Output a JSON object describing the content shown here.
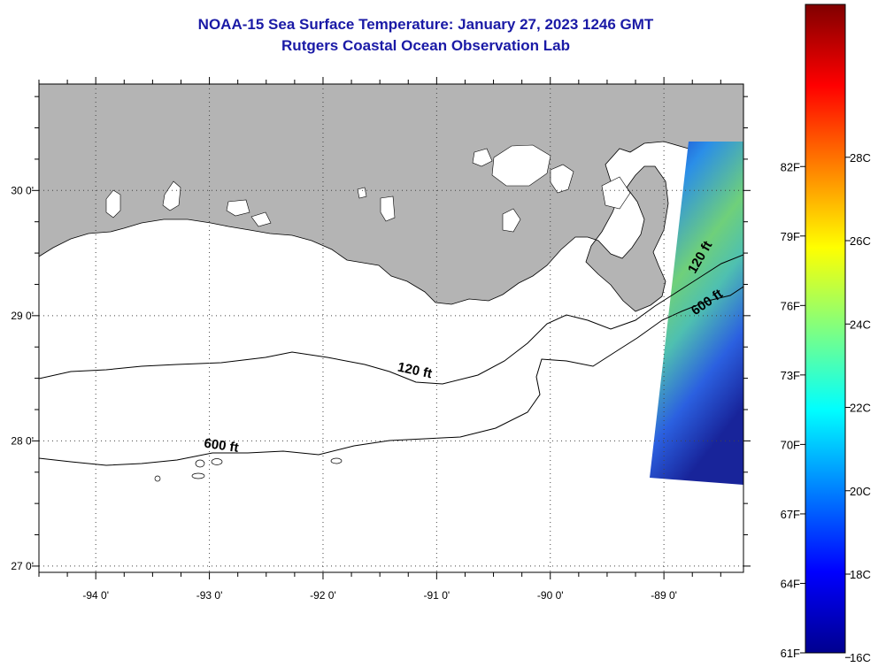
{
  "header": {
    "title": "NOAA-15 Sea Surface Temperature:  January 27, 2023 1246 GMT",
    "subtitle": "Rutgers Coastal Ocean Observation Lab"
  },
  "map": {
    "lon_range": [
      -94.5,
      -88.3
    ],
    "lat_range": [
      26.95,
      30.85
    ],
    "lon_ticks": [
      {
        "value": -94,
        "label": "-94 0'"
      },
      {
        "value": -93,
        "label": "-93 0'"
      },
      {
        "value": -92,
        "label": "-92 0'"
      },
      {
        "value": -91,
        "label": "-91 0'"
      },
      {
        "value": -90,
        "label": "-90 0'"
      },
      {
        "value": -89,
        "label": "-89 0'"
      }
    ],
    "lat_ticks": [
      {
        "value": 30,
        "label": "30 0'"
      },
      {
        "value": 29,
        "label": "29 0'"
      },
      {
        "value": 28,
        "label": "28 0'"
      },
      {
        "value": 27,
        "label": "27 0'"
      }
    ],
    "contour_labels": [
      {
        "text": "120 ft",
        "lon": -91.2,
        "lat": 28.53
      },
      {
        "text": "600 ft",
        "lon": -92.9,
        "lat": 27.93
      },
      {
        "text": "120 ft",
        "lon": -88.65,
        "lat": 29.45
      },
      {
        "text": "600 ft",
        "lon": -88.6,
        "lat": 29.08
      }
    ],
    "colors": {
      "land": "#b4b4b4",
      "water": "#ffffff",
      "grid": "#444444"
    }
  },
  "colorbar": {
    "fahrenheit": [
      {
        "value": 82,
        "label": "82F"
      },
      {
        "value": 79,
        "label": "79F"
      },
      {
        "value": 76,
        "label": "76F"
      },
      {
        "value": 73,
        "label": "73F"
      },
      {
        "value": 70,
        "label": "70F"
      },
      {
        "value": 67,
        "label": "67F"
      },
      {
        "value": 64,
        "label": "64F"
      },
      {
        "value": 61,
        "label": "61F"
      }
    ],
    "celsius": [
      {
        "value": 28,
        "label": "28C"
      },
      {
        "value": 26,
        "label": "26C"
      },
      {
        "value": 24,
        "label": "24C"
      },
      {
        "value": 22,
        "label": "22C"
      },
      {
        "value": 20,
        "label": "20C"
      },
      {
        "value": 18,
        "label": "18C"
      },
      {
        "value": 16,
        "label": "16C"
      }
    ],
    "colormap": [
      "#00008f",
      "#0000ff",
      "#0080ff",
      "#00ffff",
      "#80ff80",
      "#ffff00",
      "#ff8000",
      "#ff0000",
      "#800000"
    ]
  }
}
